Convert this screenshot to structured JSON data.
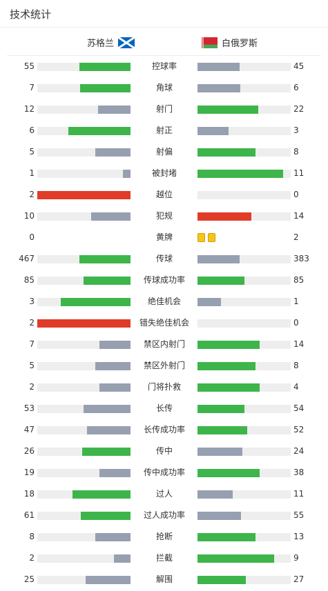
{
  "header": {
    "title": "技术统计"
  },
  "teams": {
    "home": "苏格兰",
    "away": "白俄罗斯"
  },
  "colors": {
    "win": "#3db54a",
    "lose": "#97a0b0",
    "red": "#e03c28",
    "track": "#eeeeee",
    "card": "#f5c518"
  },
  "stats": [
    {
      "label": "控球率",
      "home": "55",
      "away": "45",
      "home_fill": 0.55,
      "away_fill": 0.45,
      "home_color": "win",
      "away_color": "lose"
    },
    {
      "label": "角球",
      "home": "7",
      "away": "6",
      "home_fill": 0.54,
      "away_fill": 0.46,
      "home_color": "win",
      "away_color": "lose"
    },
    {
      "label": "射门",
      "home": "12",
      "away": "22",
      "home_fill": 0.35,
      "away_fill": 0.65,
      "home_color": "lose",
      "away_color": "win"
    },
    {
      "label": "射正",
      "home": "6",
      "away": "3",
      "home_fill": 0.67,
      "away_fill": 0.33,
      "home_color": "win",
      "away_color": "lose"
    },
    {
      "label": "射偏",
      "home": "5",
      "away": "8",
      "home_fill": 0.38,
      "away_fill": 0.62,
      "home_color": "lose",
      "away_color": "win"
    },
    {
      "label": "被封堵",
      "home": "1",
      "away": "11",
      "home_fill": 0.08,
      "away_fill": 0.92,
      "home_color": "lose",
      "away_color": "win"
    },
    {
      "label": "越位",
      "home": "2",
      "away": "0",
      "home_fill": 1.0,
      "away_fill": 0,
      "home_color": "red",
      "away_color": "lose"
    },
    {
      "label": "犯规",
      "home": "10",
      "away": "14",
      "home_fill": 0.42,
      "away_fill": 0.58,
      "home_color": "lose",
      "away_color": "red"
    },
    {
      "label": "黄牌",
      "home": "0",
      "away": "2",
      "cards_away": 2
    },
    {
      "label": "传球",
      "home": "467",
      "away": "383",
      "home_fill": 0.55,
      "away_fill": 0.45,
      "home_color": "win",
      "away_color": "lose"
    },
    {
      "label": "传球成功率",
      "home": "85",
      "away": "85",
      "home_fill": 0.5,
      "away_fill": 0.5,
      "home_color": "win",
      "away_color": "win"
    },
    {
      "label": "绝佳机会",
      "home": "3",
      "away": "1",
      "home_fill": 0.75,
      "away_fill": 0.25,
      "home_color": "win",
      "away_color": "lose"
    },
    {
      "label": "错失绝佳机会",
      "home": "2",
      "away": "0",
      "home_fill": 1.0,
      "away_fill": 0,
      "home_color": "red",
      "away_color": "lose"
    },
    {
      "label": "禁区内射门",
      "home": "7",
      "away": "14",
      "home_fill": 0.33,
      "away_fill": 0.67,
      "home_color": "lose",
      "away_color": "win"
    },
    {
      "label": "禁区外射门",
      "home": "5",
      "away": "8",
      "home_fill": 0.38,
      "away_fill": 0.62,
      "home_color": "lose",
      "away_color": "win"
    },
    {
      "label": "门将扑救",
      "home": "2",
      "away": "4",
      "home_fill": 0.33,
      "away_fill": 0.67,
      "home_color": "lose",
      "away_color": "win"
    },
    {
      "label": "长传",
      "home": "53",
      "away": "54",
      "home_fill": 0.5,
      "away_fill": 0.5,
      "home_color": "lose",
      "away_color": "win"
    },
    {
      "label": "长传成功率",
      "home": "47",
      "away": "52",
      "home_fill": 0.47,
      "away_fill": 0.53,
      "home_color": "lose",
      "away_color": "win"
    },
    {
      "label": "传中",
      "home": "26",
      "away": "24",
      "home_fill": 0.52,
      "away_fill": 0.48,
      "home_color": "win",
      "away_color": "lose"
    },
    {
      "label": "传中成功率",
      "home": "19",
      "away": "38",
      "home_fill": 0.33,
      "away_fill": 0.67,
      "home_color": "lose",
      "away_color": "win"
    },
    {
      "label": "过人",
      "home": "18",
      "away": "11",
      "home_fill": 0.62,
      "away_fill": 0.38,
      "home_color": "win",
      "away_color": "lose"
    },
    {
      "label": "过人成功率",
      "home": "61",
      "away": "55",
      "home_fill": 0.53,
      "away_fill": 0.47,
      "home_color": "win",
      "away_color": "lose"
    },
    {
      "label": "抢断",
      "home": "8",
      "away": "13",
      "home_fill": 0.38,
      "away_fill": 0.62,
      "home_color": "lose",
      "away_color": "win"
    },
    {
      "label": "拦截",
      "home": "2",
      "away": "9",
      "home_fill": 0.18,
      "away_fill": 0.82,
      "home_color": "lose",
      "away_color": "win"
    },
    {
      "label": "解围",
      "home": "25",
      "away": "27",
      "home_fill": 0.48,
      "away_fill": 0.52,
      "home_color": "lose",
      "away_color": "win"
    }
  ]
}
